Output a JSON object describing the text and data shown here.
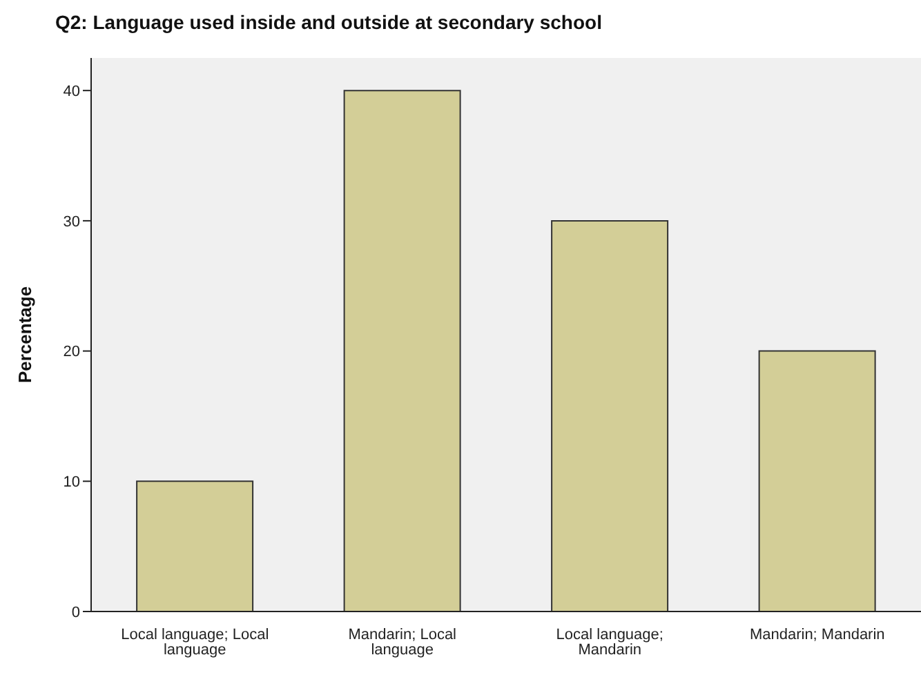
{
  "chart_data": {
    "type": "bar",
    "title": "Q2: Language used inside and outside at secondary school",
    "ylabel": "Percentage",
    "categories": [
      "Local language; Local language",
      "Mandarin; Local language",
      "Local language; Mandarin",
      "Mandarin; Mandarin"
    ],
    "values": [
      10,
      40,
      30,
      20
    ],
    "color": "#d3ce97",
    "ylim": [
      0,
      42.5
    ],
    "yticks": [
      0,
      10,
      20,
      30,
      40
    ],
    "grid": false
  }
}
